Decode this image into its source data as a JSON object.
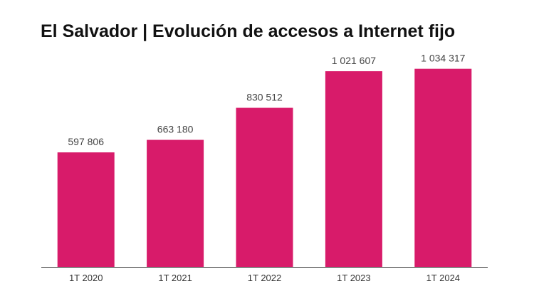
{
  "chart_data": {
    "type": "bar",
    "title": "El Salvador | Evolución de accesos a Internet fijo",
    "categories": [
      "1T 2020",
      "1T 2021",
      "1T 2022",
      "1T 2023",
      "1T 2024"
    ],
    "values": [
      597806,
      663180,
      830512,
      1021607,
      1034317
    ],
    "value_labels": [
      "597 806",
      "663 180",
      "830 512",
      "1 021 607",
      "1 034 317"
    ],
    "xlabel": "",
    "ylabel": "",
    "ylim": [
      0,
      1100000
    ],
    "grid": false,
    "legend": "none",
    "colors": {
      "bar": "#D81B6A",
      "axis": "#333333"
    }
  }
}
